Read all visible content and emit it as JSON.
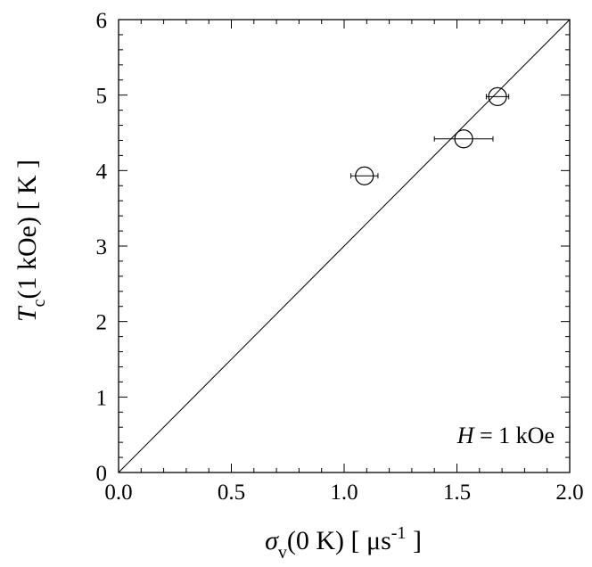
{
  "chart_data": {
    "type": "scatter",
    "xlabel": {
      "symbol": "σ",
      "subscript": "v",
      "rest": "(0 K) [ μs",
      "superscript": "-1",
      "close": " ]"
    },
    "ylabel": {
      "symbol": "T",
      "subscript": "c",
      "rest": "(1 kOe) [ K ]"
    },
    "xlim": [
      0.0,
      2.0
    ],
    "ylim": [
      0,
      6
    ],
    "x_ticks": [
      "0.0",
      "0.5",
      "1.0",
      "1.5",
      "2.0"
    ],
    "y_ticks": [
      "0",
      "1",
      "2",
      "3",
      "4",
      "5",
      "6"
    ],
    "grid": false,
    "series": [
      {
        "marker": "open-circle",
        "points": [
          {
            "x": 1.09,
            "y": 3.93,
            "xerr": 0.06
          },
          {
            "x": 1.53,
            "y": 4.42,
            "xerr": 0.13
          },
          {
            "x": 1.68,
            "y": 4.98,
            "xerr": 0.05
          }
        ]
      }
    ],
    "fit_line": {
      "x": [
        0.0,
        2.0
      ],
      "y": [
        0.0,
        6.0
      ]
    },
    "annotation": {
      "symbol": "H",
      "rest": " = 1 kOe"
    }
  }
}
